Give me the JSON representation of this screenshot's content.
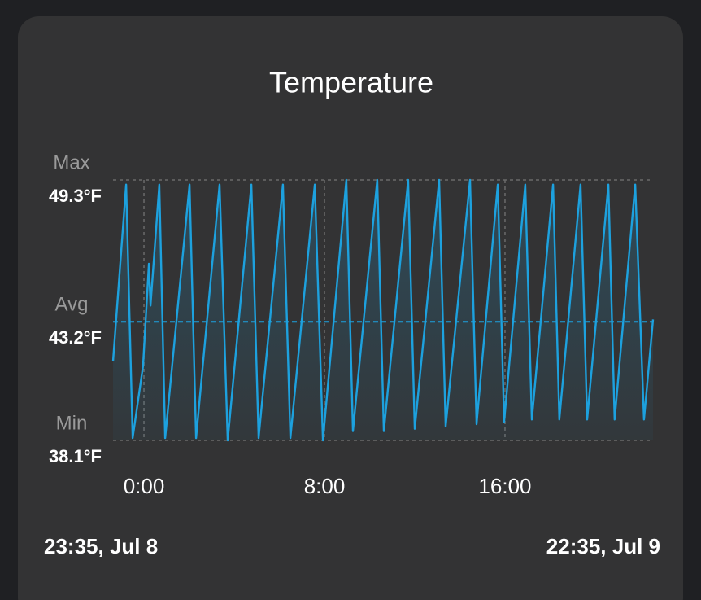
{
  "chart_data": {
    "type": "line",
    "title": "Temperature",
    "color": "#1da1de",
    "x": [
      -1.37,
      -0.79,
      -0.5,
      -0.04,
      0.22,
      0.29,
      0.68,
      0.94,
      2.02,
      2.31,
      3.35,
      3.71,
      4.76,
      5.08,
      6.16,
      6.49,
      7.57,
      7.93,
      8.97,
      9.26,
      10.34,
      10.63,
      11.71,
      12.0,
      13.08,
      13.37,
      14.45,
      14.74,
      15.68,
      15.96,
      16.9,
      17.19,
      18.13,
      18.41,
      19.35,
      19.64,
      20.58,
      20.86,
      21.77,
      22.16,
      22.56
    ],
    "values": [
      41.5,
      49.1,
      38.2,
      41.3,
      45.7,
      43.9,
      49.1,
      38.2,
      49.1,
      38.2,
      49.1,
      38.1,
      49.1,
      38.2,
      49.1,
      38.2,
      49.1,
      38.1,
      49.3,
      38.5,
      49.3,
      38.5,
      49.3,
      38.6,
      49.3,
      38.7,
      49.3,
      38.8,
      49.1,
      38.9,
      49.1,
      39.0,
      49.1,
      39.0,
      49.1,
      39.0,
      49.1,
      39.0,
      49.1,
      39.0,
      43.3
    ],
    "xlim": [
      -1.37,
      22.56
    ],
    "xticks": [
      {
        "value": 0,
        "label": "0:00"
      },
      {
        "value": 8,
        "label": "8:00"
      },
      {
        "value": 16,
        "label": "16:00"
      }
    ],
    "ylim": [
      38.1,
      49.3
    ],
    "reference_lines": [
      {
        "name": "Max",
        "value": 49.3,
        "label": "49.3°F"
      },
      {
        "name": "Avg",
        "value": 43.2,
        "label": "43.2°F"
      },
      {
        "name": "Min",
        "value": 38.1,
        "label": "38.1°F"
      }
    ],
    "start_label": "23:35, Jul 8",
    "end_label": "22:35, Jul 9"
  }
}
